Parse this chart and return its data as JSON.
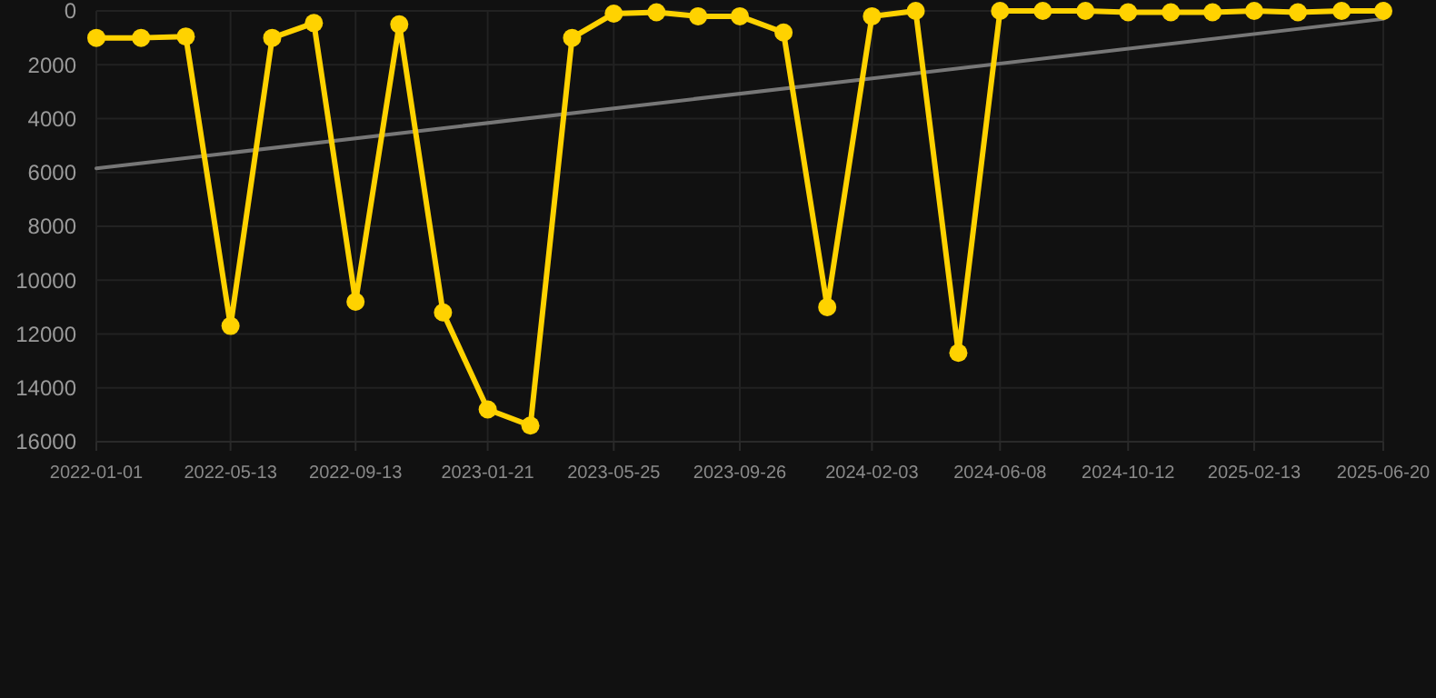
{
  "chart_data": {
    "type": "line",
    "x": [
      "2022-01-01",
      "2022-02-14",
      "2022-03-30",
      "2022-05-13",
      "2022-06-23",
      "2022-08-03",
      "2022-09-13",
      "2022-10-26",
      "2022-12-08",
      "2023-01-21",
      "2023-03-04",
      "2023-04-14",
      "2023-05-25",
      "2023-07-06",
      "2023-08-16",
      "2023-09-26",
      "2023-11-08",
      "2023-12-21",
      "2024-02-03",
      "2024-03-17",
      "2024-04-28",
      "2024-06-08",
      "2024-07-20",
      "2024-08-31",
      "2024-10-12",
      "2024-11-23",
      "2025-01-03",
      "2025-02-13",
      "2025-03-28",
      "2025-05-10",
      "2025-06-20"
    ],
    "series": [
      {
        "color": "#ffd200",
        "marker": "circle",
        "values": [
          1000,
          1000,
          950,
          11700,
          1000,
          450,
          10800,
          500,
          11200,
          14800,
          15400,
          1000,
          100,
          50,
          200,
          200,
          800,
          11000,
          200,
          0,
          12700,
          0,
          0,
          0,
          50,
          50,
          50,
          0,
          50,
          0,
          0
        ]
      },
      {
        "type": "line",
        "color": "#777777",
        "marker": "none",
        "x": [
          "2022-01-01",
          "2025-06-20"
        ],
        "values": [
          5850,
          300
        ]
      }
    ],
    "xlim": [
      "2022-01-01",
      "2025-06-20"
    ],
    "xticks": [
      "2022-01-01",
      "2022-05-13",
      "2022-09-13",
      "2023-01-21",
      "2023-05-25",
      "2023-09-26",
      "2024-02-03",
      "2024-06-08",
      "2024-10-12",
      "2025-02-13",
      "2025-06-20"
    ],
    "ylim": [
      16000,
      0
    ],
    "yticks": [
      0,
      2000,
      4000,
      6000,
      8000,
      10000,
      12000,
      14000,
      16000
    ],
    "grid": true
  }
}
